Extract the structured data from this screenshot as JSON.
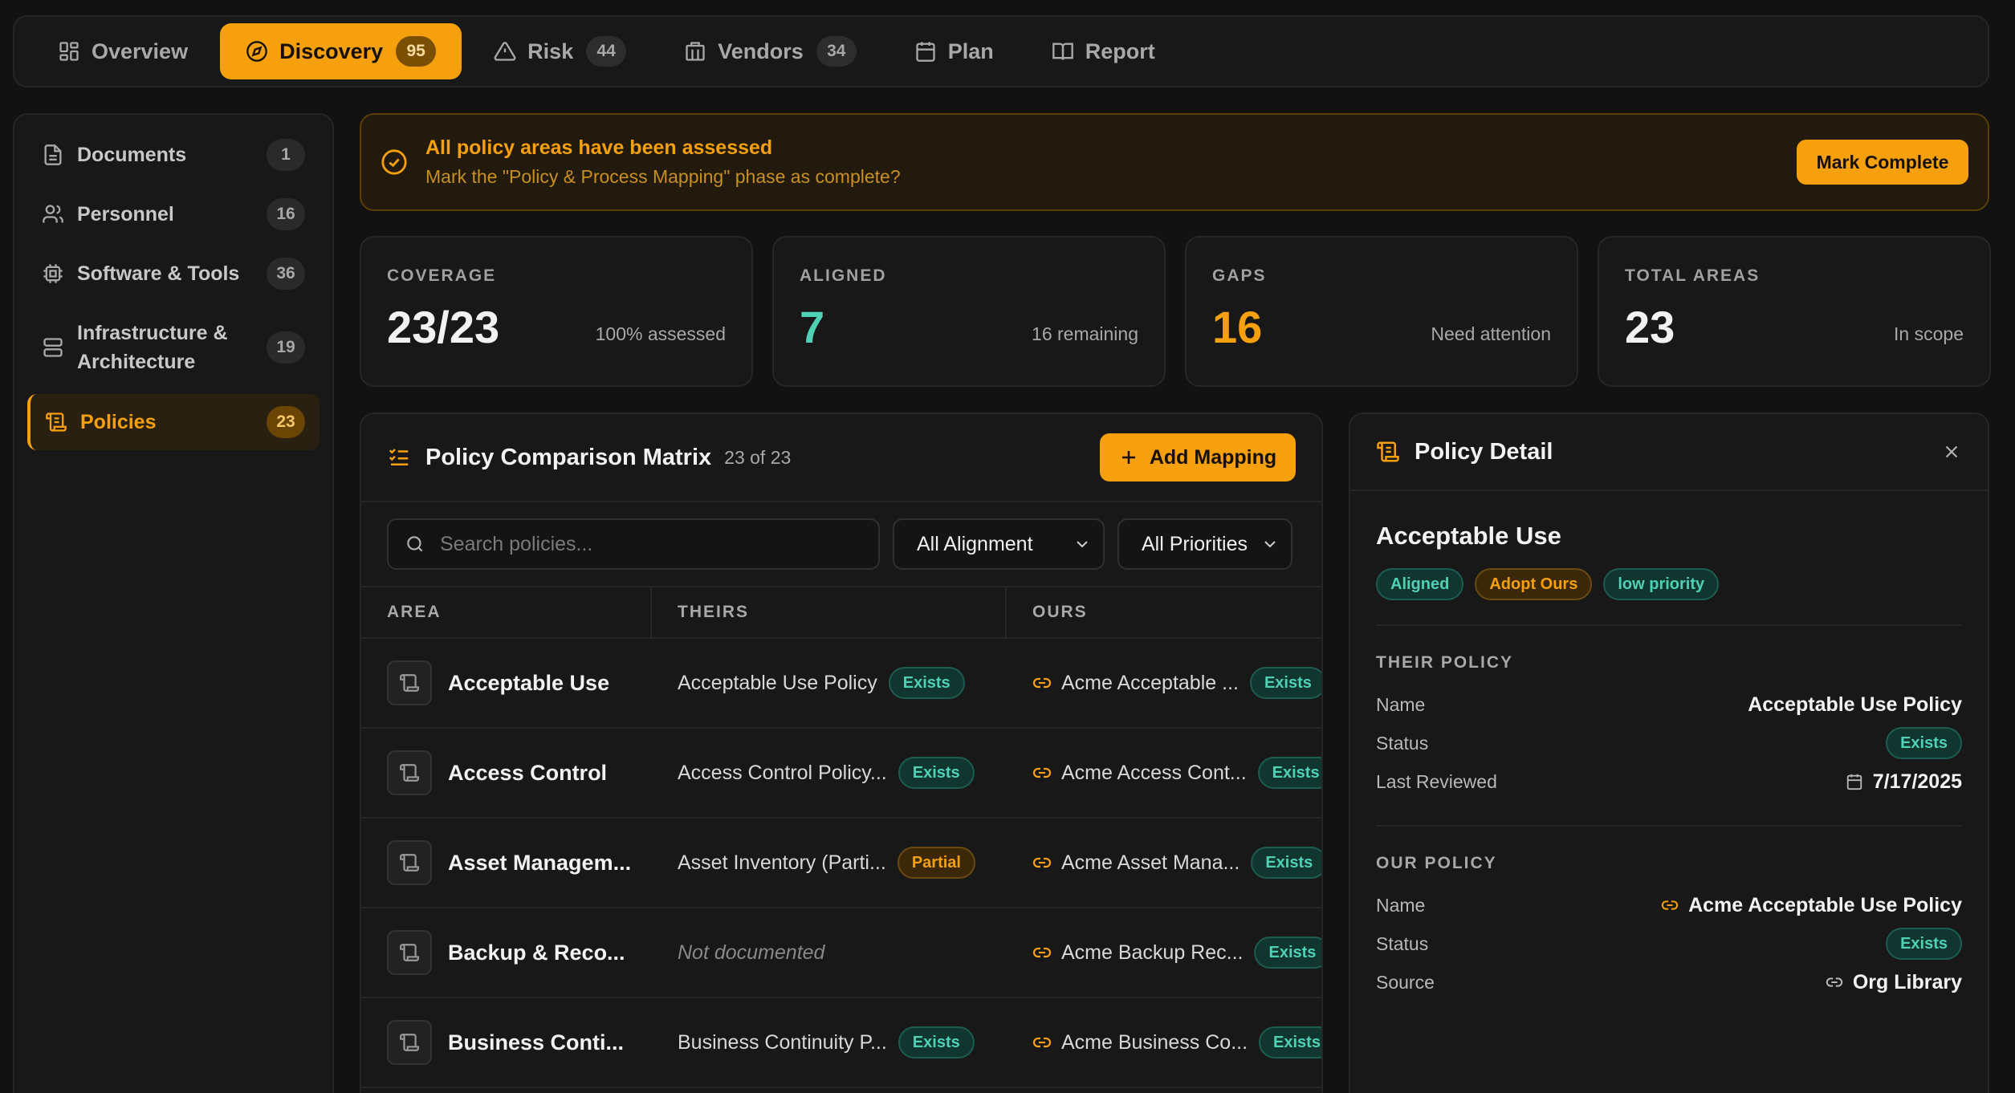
{
  "tabs": [
    {
      "label": "Overview",
      "icon": "grid-icon",
      "badge": null,
      "active": false
    },
    {
      "label": "Discovery",
      "icon": "compass-icon",
      "badge": "95",
      "active": true
    },
    {
      "label": "Risk",
      "icon": "warning-icon",
      "badge": "44",
      "active": false
    },
    {
      "label": "Vendors",
      "icon": "building-icon",
      "badge": "34",
      "active": false
    },
    {
      "label": "Plan",
      "icon": "calendar-icon",
      "badge": null,
      "active": false
    },
    {
      "label": "Report",
      "icon": "book-icon",
      "badge": null,
      "active": false
    }
  ],
  "sidebar": {
    "items": [
      {
        "label": "Documents",
        "count": "1",
        "icon": "document-icon",
        "active": false
      },
      {
        "label": "Personnel",
        "count": "16",
        "icon": "users-icon",
        "active": false
      },
      {
        "label": "Software & Tools",
        "count": "36",
        "icon": "chip-icon",
        "active": false
      },
      {
        "label": "Infrastructure & Architecture",
        "count": "19",
        "icon": "server-icon",
        "active": false
      },
      {
        "label": "Policies",
        "count": "23",
        "icon": "scroll-icon",
        "active": true
      }
    ]
  },
  "banner": {
    "title": "All policy areas have been assessed",
    "subtitle": "Mark the \"Policy & Process Mapping\" phase as complete?",
    "button": "Mark Complete"
  },
  "stats": [
    {
      "label": "COVERAGE",
      "value": "23/23",
      "note": "100% assessed",
      "color": "#f2f2f2"
    },
    {
      "label": "ALIGNED",
      "value": "7",
      "note": "16 remaining",
      "color": "#4fd1b5"
    },
    {
      "label": "GAPS",
      "value": "16",
      "note": "Need attention",
      "color": "#f5a00c"
    },
    {
      "label": "TOTAL AREAS",
      "value": "23",
      "note": "In scope",
      "color": "#f2f2f2"
    }
  ],
  "matrix": {
    "title": "Policy Comparison Matrix",
    "count": "23 of 23",
    "add_button": "Add Mapping",
    "search_placeholder": "Search policies...",
    "alignment_filter": "All Alignment",
    "priority_filter": "All Priorities",
    "columns": [
      "AREA",
      "THEIRS",
      "OURS"
    ],
    "rows": [
      {
        "area": "Acceptable Use",
        "theirs": "Acceptable Use Policy",
        "theirs_status": "Exists",
        "ours": "Acme Acceptable ...",
        "ours_status": "Exists"
      },
      {
        "area": "Access Control",
        "theirs": "Access Control Policy...",
        "theirs_status": "Exists",
        "ours": "Acme Access Cont...",
        "ours_status": "Exists"
      },
      {
        "area": "Asset Managem...",
        "theirs": "Asset Inventory (Parti...",
        "theirs_status": "Partial",
        "ours": "Acme Asset Mana...",
        "ours_status": "Exists"
      },
      {
        "area": "Backup & Reco...",
        "theirs": "Not documented",
        "theirs_status": null,
        "ours": "Acme Backup Rec...",
        "ours_status": "Exists"
      },
      {
        "area": "Business Conti...",
        "theirs": "Business Continuity P...",
        "theirs_status": "Exists",
        "ours": "Acme Business Co...",
        "ours_status": "Exists"
      }
    ]
  },
  "detail": {
    "title": "Policy Detail",
    "name": "Acceptable Use",
    "tags": [
      {
        "label": "Aligned",
        "tone": "green"
      },
      {
        "label": "Adopt Ours",
        "tone": "amber"
      },
      {
        "label": "low priority",
        "tone": "green"
      }
    ],
    "their_policy": {
      "heading": "THEIR POLICY",
      "name_label": "Name",
      "name": "Acceptable Use Policy",
      "status_label": "Status",
      "status": "Exists",
      "reviewed_label": "Last Reviewed",
      "reviewed": "7/17/2025"
    },
    "our_policy": {
      "heading": "OUR POLICY",
      "name_label": "Name",
      "name": "Acme Acceptable Use Policy",
      "status_label": "Status",
      "status": "Exists",
      "source_label": "Source",
      "source": "Org Library"
    }
  }
}
